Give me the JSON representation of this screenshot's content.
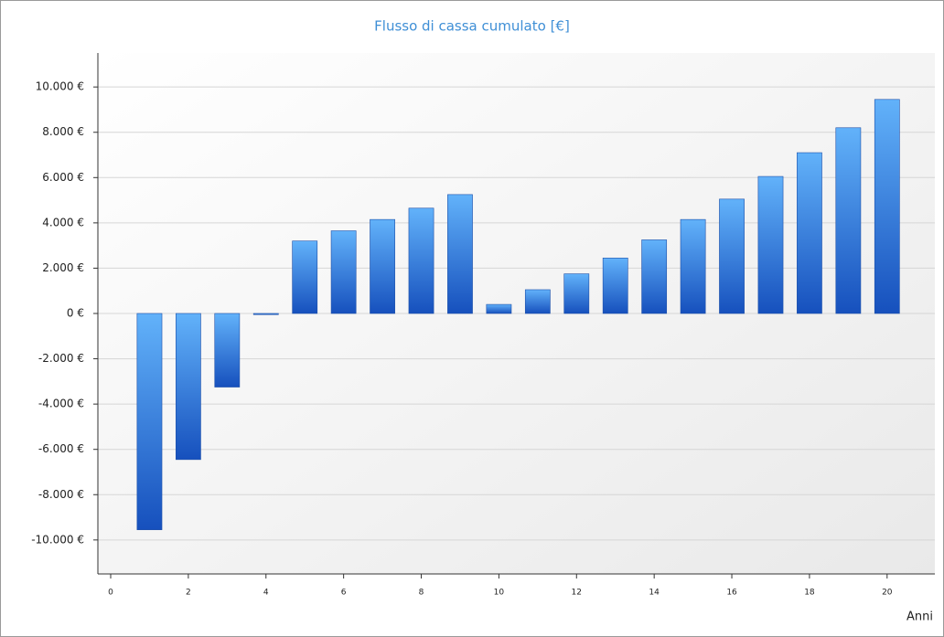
{
  "chart_data": {
    "type": "bar",
    "title": "Flusso di cassa cumulato [€]",
    "x_label": "Anni",
    "x": [
      1,
      2,
      3,
      4,
      5,
      6,
      7,
      8,
      9,
      10,
      11,
      12,
      13,
      14,
      15,
      16,
      17,
      18,
      19,
      20
    ],
    "values": [
      -9550,
      -6450,
      -3250,
      -50,
      3200,
      3650,
      4150,
      4650,
      5250,
      400,
      1050,
      1750,
      2450,
      3250,
      4150,
      5050,
      6050,
      7100,
      8200,
      9450
    ],
    "color": "#2f78dc",
    "xlim": [
      -0.33,
      21.23
    ],
    "xticks": [
      0,
      2,
      4,
      6,
      8,
      10,
      12,
      14,
      16,
      18,
      20
    ],
    "ylim": [
      -11500,
      11500
    ],
    "yticks": [
      {
        "value": -10000,
        "label": "-10.000 €"
      },
      {
        "value": -8000,
        "label": "-8.000 €"
      },
      {
        "value": -6000,
        "label": "-6.000 €"
      },
      {
        "value": -4000,
        "label": "-4.000 €"
      },
      {
        "value": -2000,
        "label": "-2.000 €"
      },
      {
        "value": 0,
        "label": "0 €"
      },
      {
        "value": 2000,
        "label": "2.000 €"
      },
      {
        "value": 4000,
        "label": "4.000 €"
      },
      {
        "value": 6000,
        "label": "6.000 €"
      },
      {
        "value": 8000,
        "label": "8.000 €"
      },
      {
        "value": 10000,
        "label": "10.000 €"
      }
    ],
    "grid": true
  }
}
